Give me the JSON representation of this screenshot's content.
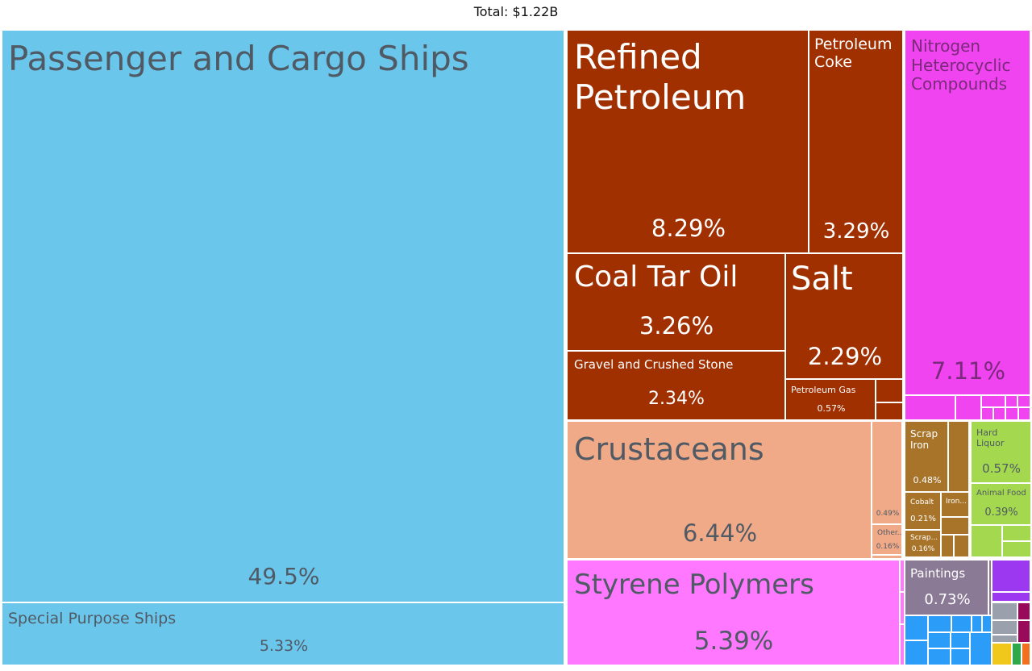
{
  "header": {
    "total_label": "Total: $1.22B"
  },
  "colors": {
    "transportation": "#6bc6ec",
    "mineral": "#a03000",
    "chemical": "#f044f0",
    "animal": "#f0aa88",
    "plastics": "#ff78ff",
    "metals": "#a8742a",
    "food": "#a4d84e",
    "arts": "#8a7a96",
    "machinery": "#2b9cf8",
    "misc_purple": "#9b38f0",
    "misc_gray": "#9aa0ac",
    "misc_maroon": "#9a0a5a",
    "misc_yellow": "#f0c81c",
    "misc_green": "#2ea84a",
    "misc_orange": "#f07020"
  },
  "chart_data": {
    "type": "treemap",
    "title": "",
    "total": "Total: $1.22B",
    "items": [
      {
        "name": "Passenger and Cargo Ships",
        "share": "49.5%",
        "group": "transportation"
      },
      {
        "name": "Special Purpose Ships",
        "share": "5.33%",
        "group": "transportation"
      },
      {
        "name": "Refined Petroleum",
        "share": "8.29%",
        "group": "mineral"
      },
      {
        "name": "Petroleum Coke",
        "share": "3.29%",
        "group": "mineral"
      },
      {
        "name": "Coal Tar Oil",
        "share": "3.26%",
        "group": "mineral"
      },
      {
        "name": "Salt",
        "share": "2.29%",
        "group": "mineral"
      },
      {
        "name": "Gravel and Crushed Stone",
        "share": "2.34%",
        "group": "mineral"
      },
      {
        "name": "Petroleum Gas",
        "share": "0.57%",
        "group": "mineral"
      },
      {
        "name": "Nitrogen Heterocyclic Compounds",
        "share": "7.11%",
        "group": "chemical"
      },
      {
        "name": "Crustaceans",
        "share": "6.44%",
        "group": "animal"
      },
      {
        "name": "",
        "share": "0.49%",
        "group": "animal"
      },
      {
        "name": "Other...",
        "share": "0.16%",
        "group": "animal"
      },
      {
        "name": "Styrene Polymers",
        "share": "5.39%",
        "group": "plastics"
      },
      {
        "name": "Scrap Iron",
        "share": "0.48%",
        "group": "metals"
      },
      {
        "name": "Cobalt",
        "share": "0.21%",
        "group": "metals"
      },
      {
        "name": "Iron...",
        "share": "",
        "group": "metals"
      },
      {
        "name": "Scrap...",
        "share": "0.16%",
        "group": "metals"
      },
      {
        "name": "Hard Liquor",
        "share": "0.57%",
        "group": "food"
      },
      {
        "name": "Animal Food",
        "share": "0.39%",
        "group": "food"
      },
      {
        "name": "Paintings",
        "share": "0.73%",
        "group": "arts"
      }
    ]
  }
}
